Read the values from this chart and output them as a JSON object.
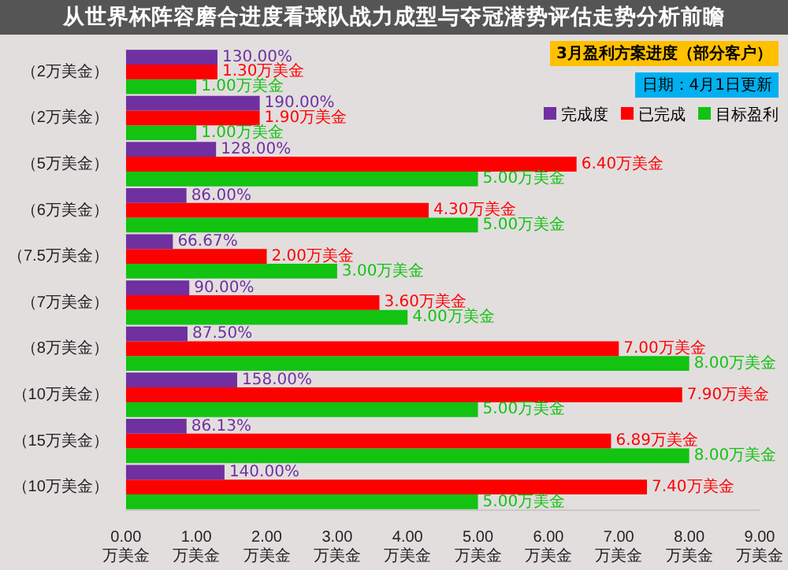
{
  "chart_data": {
    "type": "bar",
    "orientation": "horizontal",
    "title": "3月盈利方案进度（部分客户）",
    "subtitle": "日期：4月1日更新",
    "annotations": [
      "从世界杯阵容磨合进度看球队战力成型与夺冠潜势评估走势分析前瞻"
    ],
    "categories": [
      "（2万美金）",
      "（2万美金）",
      "（5万美金）",
      "（6万美金）",
      "（7.5万美金）",
      "（7万美金）",
      "（8万美金）",
      "（10万美金）",
      "（15万美金）",
      "（10万美金）"
    ],
    "series": [
      {
        "name": "完成度",
        "color": "#7030a0",
        "values": [
          1.3,
          1.9,
          1.28,
          0.86,
          0.6667,
          0.9,
          0.875,
          1.58,
          0.8613,
          1.4
        ],
        "value_labels": [
          "130.00%",
          "190.00%",
          "128.00%",
          "86.00%",
          "66.67%",
          "90.00%",
          "87.50%",
          "158.00%",
          "86.13%",
          "140.00%"
        ]
      },
      {
        "name": "已完成",
        "color": "#ff0000",
        "values": [
          1.3,
          1.9,
          6.4,
          4.3,
          2.0,
          3.6,
          7.0,
          7.9,
          6.89,
          7.4
        ],
        "value_labels": [
          "1.30万美金",
          "1.90万美金",
          "6.40万美金",
          "4.30万美金",
          "2.00万美金",
          "3.60万美金",
          "7.00万美金",
          "7.90万美金",
          "6.89万美金",
          "7.40万美金"
        ]
      },
      {
        "name": "目标盈利",
        "color": "#12c312",
        "values": [
          1,
          1,
          5,
          5,
          3,
          4,
          8,
          5,
          8,
          5
        ],
        "value_labels": [
          "1.00万美金",
          "1.00万美金",
          "5.00万美金",
          "5.00万美金",
          "3.00万美金",
          "4.00万美金",
          "8.00万美金",
          "5.00万美金",
          "8.00万美金",
          "5.00万美金"
        ]
      }
    ],
    "xlim": [
      0,
      9
    ],
    "xticks": [
      {
        "value": 0,
        "label": "0.00万美金"
      },
      {
        "value": 1,
        "label": "1.00万美金"
      },
      {
        "value": 2,
        "label": "2.00万美金"
      },
      {
        "value": 3,
        "label": "3.00万美金"
      },
      {
        "value": 4,
        "label": "4.00万美金"
      },
      {
        "value": 5,
        "label": "5.00万美金"
      },
      {
        "value": 6,
        "label": "6.00万美金"
      },
      {
        "value": 7,
        "label": "7.00万美金"
      },
      {
        "value": 8,
        "label": "8.00万美金"
      },
      {
        "value": 9,
        "label": "9.00万美金"
      }
    ],
    "legend": "top right"
  }
}
